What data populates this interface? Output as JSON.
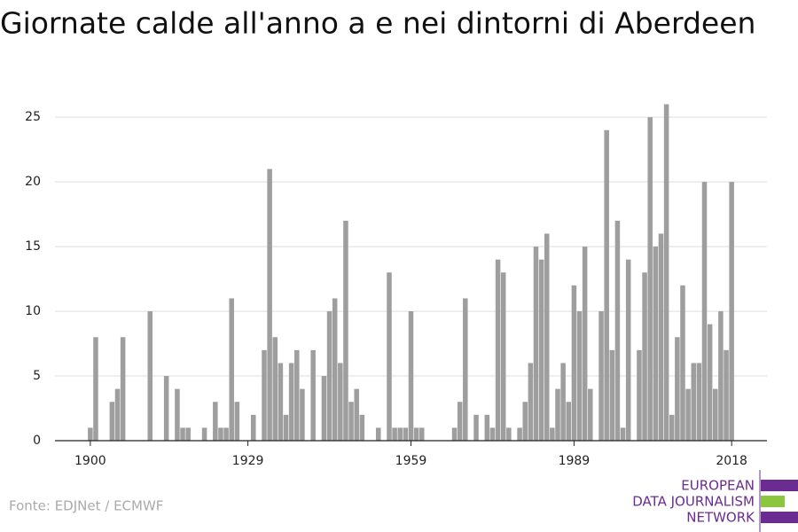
{
  "chart_data": {
    "type": "bar",
    "title": "Giornate calde all'anno a e nei dintorni di Aberdeen",
    "source": "Fonte: EDJNet / ECMWF",
    "logo": [
      "EUROPEAN",
      "DATA JOURNALISM",
      "NETWORK"
    ],
    "color": "#9e9e9e",
    "x": [
      1900,
      1901,
      1902,
      1903,
      1904,
      1905,
      1906,
      1907,
      1908,
      1909,
      1910,
      1911,
      1912,
      1913,
      1914,
      1915,
      1916,
      1917,
      1918,
      1919,
      1920,
      1921,
      1922,
      1923,
      1924,
      1925,
      1926,
      1927,
      1928,
      1929,
      1930,
      1931,
      1932,
      1933,
      1934,
      1935,
      1936,
      1937,
      1938,
      1939,
      1940,
      1941,
      1942,
      1943,
      1944,
      1945,
      1946,
      1947,
      1948,
      1949,
      1950,
      1951,
      1952,
      1953,
      1954,
      1955,
      1956,
      1957,
      1958,
      1959,
      1960,
      1961,
      1962,
      1963,
      1964,
      1965,
      1966,
      1967,
      1968,
      1969,
      1970,
      1971,
      1972,
      1973,
      1974,
      1975,
      1976,
      1977,
      1978,
      1979,
      1980,
      1981,
      1982,
      1983,
      1984,
      1985,
      1986,
      1987,
      1988,
      1989,
      1990,
      1991,
      1992,
      1993,
      1994,
      1995,
      1996,
      1997,
      1998,
      1999,
      2000,
      2001,
      2002,
      2003,
      2004,
      2005,
      2006,
      2007,
      2008,
      2009,
      2010,
      2011,
      2012,
      2013,
      2014,
      2015,
      2016,
      2017,
      2018
    ],
    "values": [
      1,
      8,
      0,
      0,
      3,
      4,
      8,
      0,
      0,
      0,
      0,
      10,
      0,
      0,
      5,
      0,
      4,
      1,
      1,
      0,
      0,
      1,
      0,
      3,
      1,
      1,
      11,
      3,
      0,
      0,
      2,
      0,
      7,
      21,
      8,
      6,
      2,
      6,
      7,
      4,
      0,
      7,
      0,
      5,
      10,
      11,
      6,
      17,
      3,
      4,
      2,
      0,
      0,
      1,
      0,
      13,
      1,
      1,
      1,
      10,
      1,
      1,
      0,
      0,
      0,
      0,
      0,
      1,
      3,
      11,
      0,
      2,
      0,
      2,
      1,
      14,
      13,
      1,
      0,
      1,
      3,
      6,
      15,
      14,
      16,
      1,
      4,
      6,
      3,
      12,
      10,
      15,
      4,
      0,
      10,
      24,
      7,
      17,
      1,
      14,
      0,
      7,
      13,
      25,
      15,
      16,
      26,
      2,
      8,
      12,
      4,
      6,
      6,
      20,
      9,
      4,
      10,
      7,
      20
    ],
    "xlim": [
      1893.5,
      2024.5
    ],
    "xticks": [
      1900,
      1929,
      1959,
      1989,
      2018
    ],
    "ylim": [
      0,
      27
    ],
    "yticks": [
      0,
      5,
      10,
      15,
      20,
      25
    ],
    "grid": true
  }
}
